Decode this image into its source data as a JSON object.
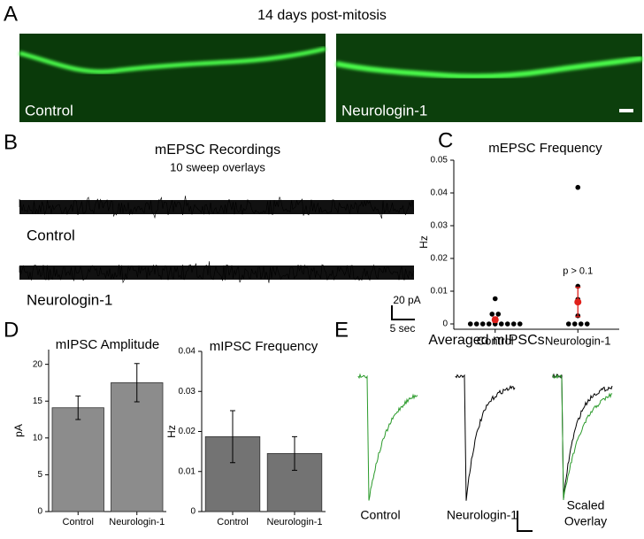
{
  "panel_a": {
    "label": "A",
    "title": "14 days post-mitosis",
    "images": [
      "Control",
      "Neurologin-1"
    ]
  },
  "panel_b": {
    "label": "B",
    "title": "mEPSC Recordings",
    "subtitle": "10 sweep overlays",
    "traces": [
      "Control",
      "Neurologin-1"
    ],
    "scale_y": "20 pA",
    "scale_x": "5 sec"
  },
  "panel_c_label": "C",
  "panel_d_label": "D",
  "panel_e": {
    "label": "E",
    "title": "Averaged mIPSCs",
    "traces": [
      "Control",
      "Neurologin-1"
    ],
    "overlay": [
      "Scaled",
      "Overlay"
    ]
  },
  "chart_data": [
    {
      "type": "strip",
      "title": "mEPSC Frequency",
      "y_label": "Hz",
      "categories": [
        "Control",
        "Neurologin-1"
      ],
      "points": [
        [
          0.0077,
          0.003,
          0.003,
          0,
          0,
          0,
          0,
          0,
          0,
          0,
          0,
          0
        ],
        [
          0.0417,
          0.0115,
          0.0075,
          0.0025,
          0,
          0,
          0,
          0
        ]
      ],
      "means": [
        0.0013,
        0.0067
      ],
      "errors": [
        0.0008,
        0.0045
      ],
      "color": "#000000",
      "mean_color": "#e0201b",
      "ylim": [
        0,
        0.05
      ],
      "yticks": [
        0,
        0.01,
        0.02,
        0.03,
        0.04,
        0.05
      ],
      "annotation": "p > 0.1"
    },
    {
      "type": "bar",
      "title": "mIPSC Amplitude",
      "y_label": "pA",
      "categories": [
        "Control",
        "Neurologin-1"
      ],
      "values": [
        14.1,
        17.5
      ],
      "errors": [
        1.6,
        2.6
      ],
      "color": "#8c8c8c",
      "ylim": [
        0,
        22
      ],
      "yticks": [
        0,
        5,
        10,
        15,
        20
      ]
    },
    {
      "type": "bar",
      "title": "mIPSC Frequency",
      "y_label": "Hz",
      "categories": [
        "Control",
        "Neurologin-1"
      ],
      "values": [
        0.0187,
        0.0145
      ],
      "errors": [
        0.0065,
        0.0042
      ],
      "color": "#737373",
      "ylim": [
        0,
        0.04
      ],
      "yticks": [
        0,
        0.01,
        0.02,
        0.03,
        0.04
      ]
    }
  ]
}
